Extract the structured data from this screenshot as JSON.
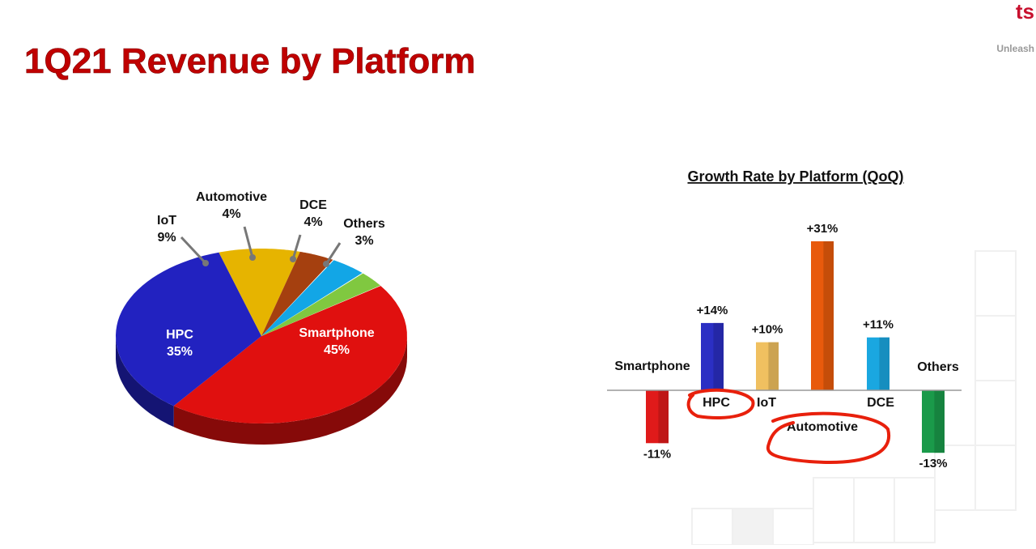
{
  "header": {
    "title": "1Q21 Revenue by Platform",
    "tagline": "Unleash"
  },
  "chart_data": [
    {
      "type": "pie",
      "categories": [
        "Smartphone",
        "HPC",
        "IoT",
        "Automotive",
        "DCE",
        "Others"
      ],
      "values": [
        45,
        35,
        9,
        4,
        4,
        3
      ],
      "value_labels": [
        "45%",
        "35%",
        "9%",
        "4%",
        "4%",
        "3%"
      ],
      "colors": [
        "#e0100f",
        "#2222c0",
        "#e6b400",
        "#a5400f",
        "#12a6e6",
        "#80c840"
      ]
    },
    {
      "type": "bar",
      "title": "Growth Rate by Platform (QoQ)",
      "categories": [
        "Smartphone",
        "HPC",
        "IoT",
        "Automotive",
        "DCE",
        "Others"
      ],
      "values": [
        -11,
        14,
        10,
        31,
        11,
        -13
      ],
      "value_labels": [
        "-11%",
        "+14%",
        "+10%",
        "+31%",
        "+11%",
        "-13%"
      ],
      "colors": [
        "#e01a1a",
        "#2b2fc4",
        "#f0c060",
        "#e85a0c",
        "#1aa7e0",
        "#1a9a4a"
      ]
    }
  ]
}
